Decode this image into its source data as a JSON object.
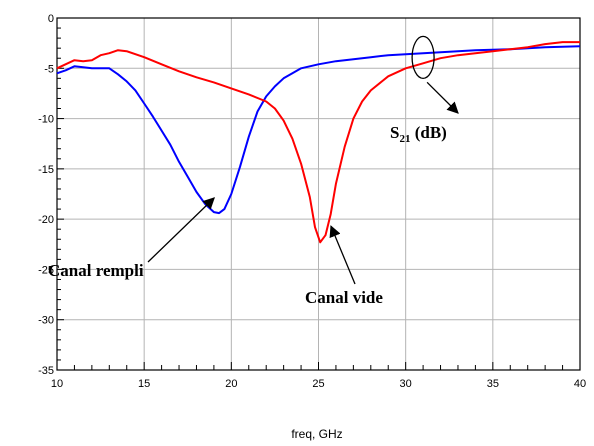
{
  "chart_data": {
    "type": "line",
    "title": "",
    "xlabel": "freq, GHz",
    "ylabel": "",
    "xlim": [
      10,
      40
    ],
    "ylim": [
      -35,
      0
    ],
    "x_ticks": [
      "10",
      "15",
      "20",
      "25",
      "30",
      "35",
      "40"
    ],
    "y_ticks": [
      "0",
      "-5",
      "-10",
      "-15",
      "-20",
      "-25",
      "-30",
      "-35"
    ],
    "grid": true,
    "series": [
      {
        "color": "#0000ff",
        "x": [
          10,
          10.5,
          11,
          11.5,
          12,
          12.5,
          13,
          13.5,
          14,
          14.5,
          15,
          15.5,
          16,
          16.5,
          17,
          17.5,
          18,
          18.5,
          19,
          19.3,
          19.6,
          20,
          20.5,
          21,
          21.5,
          22,
          22.5,
          23,
          23.5,
          24,
          25,
          26,
          27,
          28,
          29,
          30,
          32,
          34,
          36,
          38,
          40
        ],
        "values": [
          -5.5,
          -5.2,
          -4.8,
          -4.9,
          -5.0,
          -5.0,
          -5.0,
          -5.6,
          -6.3,
          -7.2,
          -8.5,
          -9.8,
          -11.2,
          -12.6,
          -14.3,
          -15.8,
          -17.3,
          -18.5,
          -19.3,
          -19.4,
          -19.0,
          -17.5,
          -14.8,
          -11.8,
          -9.3,
          -7.8,
          -6.8,
          -6.0,
          -5.5,
          -5.0,
          -4.6,
          -4.3,
          -4.1,
          -3.9,
          -3.7,
          -3.6,
          -3.4,
          -3.2,
          -3.1,
          -2.9,
          -2.8
        ]
      },
      {
        "color": "#ff0000",
        "x": [
          10,
          11,
          11.5,
          12,
          12.5,
          13,
          13.5,
          14,
          15,
          16,
          17,
          18,
          19,
          20,
          21,
          22,
          22.5,
          23,
          23.5,
          24,
          24.5,
          24.8,
          25.1,
          25.4,
          25.7,
          26,
          26.5,
          27,
          27.5,
          28,
          29,
          30,
          31,
          32,
          33,
          34,
          35,
          36,
          37,
          38,
          39,
          40
        ],
        "values": [
          -5.0,
          -4.2,
          -4.3,
          -4.2,
          -3.7,
          -3.5,
          -3.2,
          -3.3,
          -3.9,
          -4.6,
          -5.3,
          -5.9,
          -6.4,
          -7.0,
          -7.6,
          -8.3,
          -9.0,
          -10.2,
          -12.0,
          -14.5,
          -17.8,
          -20.8,
          -22.3,
          -21.6,
          -19.5,
          -16.5,
          -12.8,
          -10.0,
          -8.3,
          -7.2,
          -5.8,
          -5.0,
          -4.5,
          -4.0,
          -3.7,
          -3.5,
          -3.3,
          -3.1,
          -2.9,
          -2.6,
          -2.4,
          -2.4
        ]
      }
    ],
    "annotations": [
      {
        "text": "Canal rempli",
        "points_to": [
          18.9,
          -17.5
        ]
      },
      {
        "text": "Canal vide",
        "points_to": [
          25.6,
          -20.5
        ]
      },
      {
        "text_main": "S",
        "text_sub": "21",
        "text_tail": " (dB)",
        "points_from": [
          31.0,
          -6.0
        ]
      }
    ]
  }
}
